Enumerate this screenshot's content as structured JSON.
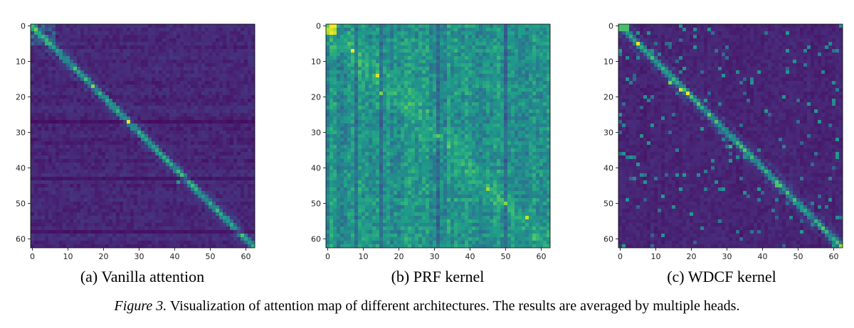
{
  "chart_data": [
    {
      "type": "heatmap",
      "title": "(a) Vanilla attention",
      "size": 63,
      "xlim": [
        0,
        62
      ],
      "ylim": [
        0,
        62
      ],
      "xticks": [
        0,
        10,
        20,
        30,
        40,
        50,
        60
      ],
      "yticks": [
        0,
        10,
        20,
        30,
        40,
        50,
        60
      ],
      "colormap": "viridis",
      "pattern": "sharp diagonal, dark off-diagonal",
      "style": "vanilla"
    },
    {
      "type": "heatmap",
      "title": "(b) PRF kernel",
      "size": 63,
      "xlim": [
        0,
        62
      ],
      "ylim": [
        0,
        62
      ],
      "xticks": [
        0,
        10,
        20,
        30,
        40,
        50,
        60
      ],
      "yticks": [
        0,
        10,
        20,
        30,
        40,
        50,
        60
      ],
      "colormap": "viridis",
      "pattern": "diffuse teal, weak diagonal",
      "style": "prf"
    },
    {
      "type": "heatmap",
      "title": "(c) WDCF kernel",
      "size": 63,
      "xlim": [
        0,
        62
      ],
      "ylim": [
        0,
        62
      ],
      "xticks": [
        0,
        10,
        20,
        30,
        40,
        50,
        60
      ],
      "yticks": [
        0,
        10,
        20,
        30,
        40,
        50,
        60
      ],
      "colormap": "viridis",
      "pattern": "clear diagonal with sparse bright spots",
      "style": "wdcf"
    }
  ],
  "caption": {
    "figure_label": "Figure 3.",
    "text": "Visualization of attention map of different architectures. The results are averaged by multiple heads."
  }
}
